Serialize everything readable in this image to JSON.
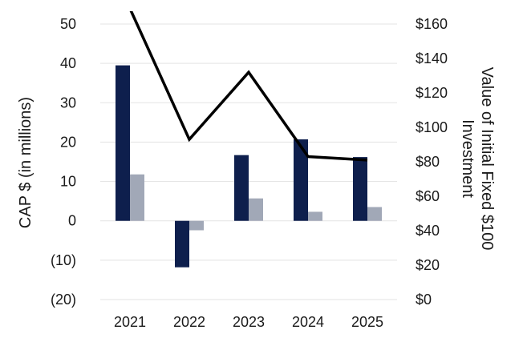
{
  "chart_data": {
    "type": "bar",
    "categories": [
      "2021",
      "2022",
      "2023",
      "2024",
      "2025"
    ],
    "series": [
      {
        "values": [
          39.5,
          -11.8,
          16.7,
          20.7,
          16.2
        ],
        "color": "#0e1f4d",
        "kind": "bar",
        "axis": "left"
      },
      {
        "values": [
          11.8,
          -2.4,
          5.7,
          2.3,
          3.5
        ],
        "color": "#a1a8b7",
        "kind": "bar",
        "axis": "left"
      },
      {
        "values": [
          169,
          93,
          132,
          83,
          81
        ],
        "color": "#000000",
        "kind": "line",
        "axis": "right"
      }
    ],
    "ylabel": "CAP $ (in millions)",
    "ylabel_right": "Value of Initial Fixed $100 Investment",
    "ylim": [
      -20,
      50
    ],
    "ylim_right": [
      0,
      160
    ],
    "yticks": [
      "50",
      "40",
      "30",
      "20",
      "10",
      "0",
      "(10)",
      "(20)"
    ],
    "yticks_right": [
      "$160",
      "$140",
      "$120",
      "$100",
      "$80",
      "$60",
      "$40",
      "$20",
      "$0"
    ],
    "grid": true,
    "legend": "none"
  }
}
